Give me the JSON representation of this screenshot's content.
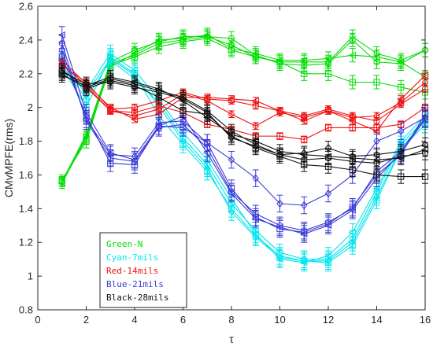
{
  "chart_data": {
    "type": "line",
    "title": "",
    "xlabel": "τ",
    "ylabel": "CMvMPFE(rms)",
    "xlim": [
      0,
      16
    ],
    "ylim": [
      0.8,
      2.6
    ],
    "xticks": [
      "0",
      "2",
      "4",
      "6",
      "8",
      "10",
      "12",
      "14",
      "16"
    ],
    "yticks": [
      "0.8",
      "1",
      "1.2",
      "1.4",
      "1.6",
      "1.8",
      "2",
      "2.2",
      "2.4",
      "2.6"
    ],
    "grid": false,
    "legend_position": "bottom-left",
    "x": [
      1,
      2,
      3,
      4,
      5,
      6,
      7,
      8,
      9,
      10,
      11,
      12,
      13,
      14,
      15,
      16
    ],
    "series": [
      {
        "group": "Green-N",
        "color": "#00dd00",
        "marker": "square",
        "values": [
          1.57,
          1.8,
          2.25,
          2.3,
          2.36,
          2.39,
          2.41,
          2.34,
          2.3,
          2.27,
          2.2,
          2.2,
          2.15,
          2.15,
          2.12,
          2.09
        ],
        "errors": [
          0.03,
          0.04,
          0.04,
          0.04,
          0.04,
          0.04,
          0.04,
          0.04,
          0.04,
          0.04,
          0.04,
          0.04,
          0.04,
          0.04,
          0.04,
          0.04
        ]
      },
      {
        "group": "Green-N",
        "color": "#00dd00",
        "marker": "circle",
        "values": [
          1.56,
          1.84,
          2.27,
          2.34,
          2.39,
          2.42,
          2.42,
          2.41,
          2.31,
          2.26,
          2.25,
          2.26,
          2.4,
          2.27,
          2.26,
          2.34
        ],
        "errors": [
          0.03,
          0.04,
          0.04,
          0.04,
          0.04,
          0.04,
          0.04,
          0.04,
          0.04,
          0.04,
          0.04,
          0.04,
          0.04,
          0.04,
          0.04,
          0.04
        ]
      },
      {
        "group": "Green-N",
        "color": "#00dd00",
        "marker": "triangle",
        "values": [
          1.55,
          1.82,
          2.24,
          2.32,
          2.4,
          2.41,
          2.43,
          2.35,
          2.32,
          2.28,
          2.28,
          2.29,
          2.31,
          2.3,
          2.27,
          2.18
        ],
        "errors": [
          0.03,
          0.04,
          0.04,
          0.04,
          0.04,
          0.04,
          0.04,
          0.04,
          0.04,
          0.04,
          0.04,
          0.04,
          0.04,
          0.04,
          0.04,
          0.04
        ]
      },
      {
        "group": "Green-N",
        "color": "#00dd00",
        "marker": "diamond",
        "values": [
          1.56,
          1.83,
          2.26,
          2.31,
          2.38,
          2.4,
          2.42,
          2.37,
          2.3,
          2.27,
          2.27,
          2.27,
          2.42,
          2.32,
          2.28,
          2.34
        ],
        "errors": [
          0.03,
          0.04,
          0.04,
          0.04,
          0.04,
          0.04,
          0.04,
          0.04,
          0.04,
          0.04,
          0.04,
          0.04,
          0.04,
          0.04,
          0.04,
          0.04
        ]
      },
      {
        "group": "Cyan-7mils",
        "color": "#00e5ee",
        "marker": "square",
        "values": [
          2.24,
          2.0,
          2.3,
          2.2,
          1.95,
          1.78,
          1.62,
          1.4,
          1.24,
          1.12,
          1.09,
          1.08,
          1.18,
          1.45,
          1.75,
          1.9
        ],
        "errors": [
          0.05,
          0.05,
          0.05,
          0.05,
          0.05,
          0.05,
          0.05,
          0.05,
          0.05,
          0.05,
          0.05,
          0.05,
          0.05,
          0.05,
          0.05,
          0.05
        ]
      },
      {
        "group": "Cyan-7mils",
        "color": "#00e5ee",
        "marker": "circle",
        "values": [
          2.25,
          2.05,
          2.28,
          2.17,
          2.03,
          1.82,
          1.66,
          1.43,
          1.27,
          1.14,
          1.1,
          1.1,
          1.22,
          1.5,
          1.78,
          1.93
        ],
        "errors": [
          0.05,
          0.05,
          0.05,
          0.05,
          0.05,
          0.05,
          0.05,
          0.05,
          0.05,
          0.05,
          0.05,
          0.05,
          0.05,
          0.05,
          0.05,
          0.05
        ]
      },
      {
        "group": "Cyan-7mils",
        "color": "#00e5ee",
        "marker": "triangle",
        "values": [
          2.26,
          2.1,
          2.32,
          2.22,
          2.05,
          1.85,
          1.69,
          1.46,
          1.25,
          1.1,
          1.08,
          1.12,
          1.26,
          1.52,
          1.8,
          1.95
        ],
        "errors": [
          0.05,
          0.05,
          0.05,
          0.05,
          0.05,
          0.05,
          0.05,
          0.05,
          0.05,
          0.05,
          0.05,
          0.05,
          0.05,
          0.05,
          0.05,
          0.05
        ]
      },
      {
        "group": "Cyan-7mils",
        "color": "#00e5ee",
        "marker": "diamond",
        "values": [
          2.27,
          2.08,
          2.29,
          2.19,
          2.01,
          1.8,
          1.64,
          1.38,
          1.23,
          1.11,
          1.09,
          1.09,
          1.2,
          1.47,
          1.76,
          1.92
        ],
        "errors": [
          0.05,
          0.05,
          0.05,
          0.05,
          0.05,
          0.05,
          0.05,
          0.05,
          0.05,
          0.05,
          0.05,
          0.05,
          0.05,
          0.05,
          0.05,
          0.05
        ]
      },
      {
        "group": "Red-14mils",
        "color": "#ee1111",
        "marker": "square",
        "values": [
          2.22,
          2.12,
          1.98,
          1.97,
          2.01,
          1.97,
          1.9,
          1.87,
          1.83,
          1.83,
          1.81,
          1.88,
          1.88,
          1.88,
          1.9,
          2.0
        ],
        "errors": [
          0.02,
          0.02,
          0.02,
          0.02,
          0.02,
          0.02,
          0.02,
          0.02,
          0.02,
          0.02,
          0.02,
          0.02,
          0.02,
          0.02,
          0.02,
          0.02
        ]
      },
      {
        "group": "Red-14mils",
        "color": "#ee1111",
        "marker": "circle",
        "values": [
          2.25,
          2.15,
          1.99,
          2.0,
          2.04,
          2.09,
          2.05,
          2.04,
          2.01,
          1.98,
          1.95,
          1.99,
          1.95,
          1.92,
          2.02,
          2.11
        ],
        "errors": [
          0.02,
          0.02,
          0.02,
          0.02,
          0.02,
          0.02,
          0.02,
          0.02,
          0.02,
          0.02,
          0.02,
          0.02,
          0.02,
          0.02,
          0.02,
          0.02
        ]
      },
      {
        "group": "Red-14mils",
        "color": "#ee1111",
        "marker": "triangle",
        "values": [
          2.28,
          2.14,
          2.0,
          1.93,
          1.96,
          2.06,
          2.06,
          2.05,
          2.04,
          1.98,
          1.92,
          1.98,
          1.92,
          1.86,
          2.05,
          2.19
        ],
        "errors": [
          0.02,
          0.02,
          0.02,
          0.02,
          0.02,
          0.02,
          0.02,
          0.02,
          0.02,
          0.02,
          0.02,
          0.02,
          0.02,
          0.02,
          0.02,
          0.02
        ]
      },
      {
        "group": "Red-14mils",
        "color": "#ee1111",
        "marker": "diamond",
        "values": [
          2.26,
          2.13,
          1.98,
          1.95,
          1.99,
          2.08,
          2.04,
          1.96,
          1.89,
          1.97,
          1.94,
          1.98,
          1.94,
          1.95,
          2.03,
          2.15
        ],
        "errors": [
          0.02,
          0.02,
          0.02,
          0.02,
          0.02,
          0.02,
          0.02,
          0.02,
          0.02,
          0.02,
          0.02,
          0.02,
          0.02,
          0.02,
          0.02,
          0.02
        ]
      },
      {
        "group": "Blue-21mils",
        "color": "#3a3ad6",
        "marker": "square",
        "values": [
          2.3,
          1.95,
          1.67,
          1.66,
          1.89,
          1.88,
          1.79,
          1.52,
          1.35,
          1.28,
          1.26,
          1.31,
          1.41,
          1.6,
          1.72,
          1.96
        ],
        "errors": [
          0.05,
          0.05,
          0.05,
          0.05,
          0.05,
          0.05,
          0.05,
          0.05,
          0.05,
          0.05,
          0.05,
          0.05,
          0.05,
          0.05,
          0.05,
          0.05
        ]
      },
      {
        "group": "Blue-21mils",
        "color": "#3a3ad6",
        "marker": "circle",
        "values": [
          2.38,
          1.92,
          1.7,
          1.68,
          1.88,
          1.9,
          1.76,
          1.5,
          1.37,
          1.3,
          1.27,
          1.32,
          1.4,
          1.62,
          1.74,
          1.94
        ],
        "errors": [
          0.05,
          0.05,
          0.05,
          0.05,
          0.05,
          0.05,
          0.05,
          0.05,
          0.05,
          0.05,
          0.05,
          0.05,
          0.05,
          0.05,
          0.05,
          0.05
        ]
      },
      {
        "group": "Blue-21mils",
        "color": "#3a3ad6",
        "marker": "triangle",
        "values": [
          2.43,
          1.97,
          1.73,
          1.69,
          1.89,
          1.95,
          1.73,
          1.49,
          1.34,
          1.29,
          1.25,
          1.3,
          1.39,
          1.58,
          1.73,
          1.93
        ],
        "errors": [
          0.05,
          0.05,
          0.05,
          0.05,
          0.05,
          0.05,
          0.05,
          0.05,
          0.05,
          0.05,
          0.05,
          0.05,
          0.05,
          0.05,
          0.05,
          0.05
        ]
      },
      {
        "group": "Blue-21mils",
        "color": "#3a3ad6",
        "marker": "diamond",
        "values": [
          2.34,
          1.93,
          1.72,
          1.71,
          1.91,
          1.92,
          1.79,
          1.69,
          1.58,
          1.43,
          1.42,
          1.49,
          1.6,
          1.8,
          1.86,
          1.94
        ],
        "errors": [
          0.05,
          0.05,
          0.05,
          0.05,
          0.05,
          0.05,
          0.05,
          0.05,
          0.05,
          0.05,
          0.05,
          0.05,
          0.05,
          0.05,
          0.05,
          0.05
        ]
      },
      {
        "group": "Black-28mils",
        "color": "#111111",
        "marker": "square",
        "values": [
          2.2,
          2.11,
          2.16,
          2.13,
          2.06,
          1.98,
          1.96,
          1.83,
          1.76,
          1.71,
          1.66,
          1.65,
          1.63,
          1.6,
          1.59,
          1.59
        ],
        "errors": [
          0.04,
          0.04,
          0.04,
          0.04,
          0.04,
          0.04,
          0.04,
          0.04,
          0.04,
          0.04,
          0.04,
          0.04,
          0.04,
          0.04,
          0.04,
          0.04
        ]
      },
      {
        "group": "Black-28mils",
        "color": "#111111",
        "marker": "circle",
        "values": [
          2.22,
          2.12,
          2.17,
          2.14,
          2.1,
          2.06,
          1.98,
          1.86,
          1.78,
          1.72,
          1.69,
          1.7,
          1.68,
          1.67,
          1.71,
          1.73
        ],
        "errors": [
          0.04,
          0.04,
          0.04,
          0.04,
          0.04,
          0.04,
          0.04,
          0.04,
          0.04,
          0.04,
          0.04,
          0.04,
          0.04,
          0.04,
          0.04,
          0.04
        ]
      },
      {
        "group": "Black-28mils",
        "color": "#111111",
        "marker": "triangle",
        "values": [
          2.19,
          2.13,
          2.18,
          2.15,
          2.11,
          2.04,
          1.94,
          1.84,
          1.8,
          1.74,
          1.72,
          1.71,
          1.7,
          1.69,
          1.7,
          1.75
        ],
        "errors": [
          0.04,
          0.04,
          0.04,
          0.04,
          0.04,
          0.04,
          0.04,
          0.04,
          0.04,
          0.04,
          0.04,
          0.04,
          0.04,
          0.04,
          0.04,
          0.04
        ]
      },
      {
        "group": "Black-28mils",
        "color": "#111111",
        "marker": "diamond",
        "values": [
          2.21,
          2.14,
          2.15,
          2.12,
          2.09,
          2.05,
          1.97,
          1.82,
          1.77,
          1.72,
          1.73,
          1.76,
          1.71,
          1.72,
          1.74,
          1.78
        ],
        "errors": [
          0.04,
          0.04,
          0.04,
          0.04,
          0.04,
          0.04,
          0.04,
          0.04,
          0.04,
          0.04,
          0.04,
          0.04,
          0.04,
          0.04,
          0.04,
          0.04
        ]
      }
    ],
    "legend": [
      {
        "label": "Green-N",
        "color": "#00dd00"
      },
      {
        "label": "Cyan-7mils",
        "color": "#00e5ee"
      },
      {
        "label": "Red-14mils",
        "color": "#ee1111"
      },
      {
        "label": "Blue-21mils",
        "color": "#3a3ad6"
      },
      {
        "label": "Black-28mils",
        "color": "#111111"
      }
    ]
  }
}
